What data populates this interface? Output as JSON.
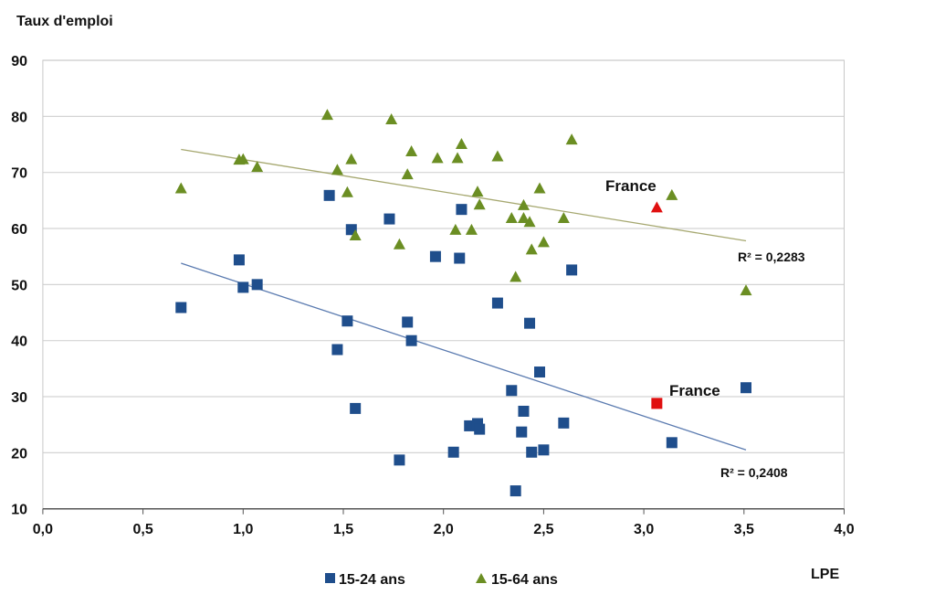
{
  "chart_data": {
    "type": "scatter",
    "title": "",
    "ylabel": "Taux d'emploi",
    "xlabel": "LPE",
    "xlim": [
      0,
      4
    ],
    "ylim": [
      10,
      90
    ],
    "xticks": [
      "0,0",
      "0,5",
      "1,0",
      "1,5",
      "2,0",
      "2,5",
      "3,0",
      "3,5",
      "4,0"
    ],
    "yticks": [
      "10",
      "20",
      "30",
      "40",
      "50",
      "60",
      "70",
      "80",
      "90"
    ],
    "grid": "horizontal",
    "legend_position": "bottom",
    "colors": {
      "series1": "#1f4e8c",
      "series2": "#6b8e23",
      "highlight": "#e01010",
      "trend1": "#5b7bb0",
      "trend2": "#a6a870",
      "grid": "#d4d4d4"
    },
    "series": [
      {
        "name": "15-24 ans",
        "marker": "square",
        "points": [
          [
            0.69,
            45.9
          ],
          [
            0.98,
            54.4
          ],
          [
            1.0,
            49.5
          ],
          [
            1.07,
            50.0
          ],
          [
            1.43,
            65.9
          ],
          [
            1.47,
            38.4
          ],
          [
            1.52,
            43.5
          ],
          [
            1.54,
            59.8
          ],
          [
            1.56,
            27.9
          ],
          [
            1.73,
            61.7
          ],
          [
            1.78,
            18.7
          ],
          [
            1.82,
            43.3
          ],
          [
            1.84,
            40.0
          ],
          [
            1.96,
            55.0
          ],
          [
            2.05,
            20.1
          ],
          [
            2.09,
            63.4
          ],
          [
            2.08,
            54.7
          ],
          [
            2.64,
            52.6
          ],
          [
            2.27,
            46.7
          ],
          [
            2.43,
            43.1
          ],
          [
            2.48,
            34.4
          ],
          [
            2.34,
            31.1
          ],
          [
            2.4,
            27.4
          ],
          [
            2.13,
            24.8
          ],
          [
            2.17,
            25.2
          ],
          [
            2.18,
            24.2
          ],
          [
            2.39,
            23.7
          ],
          [
            2.6,
            25.3
          ],
          [
            2.44,
            20.1
          ],
          [
            2.5,
            20.5
          ],
          [
            2.36,
            13.2
          ],
          [
            3.14,
            21.8
          ],
          [
            3.51,
            31.6
          ]
        ],
        "highlight": {
          "label": "France",
          "point": [
            3.065,
            28.8
          ]
        },
        "trend": {
          "from": [
            0.69,
            53.8
          ],
          "to": [
            3.51,
            20.5
          ],
          "r2_label": "R² = 0,2408"
        }
      },
      {
        "name": "15-64 ans",
        "marker": "triangle",
        "points": [
          [
            0.69,
            67.1
          ],
          [
            0.98,
            72.2
          ],
          [
            1.0,
            72.3
          ],
          [
            1.07,
            70.9
          ],
          [
            1.42,
            80.2
          ],
          [
            1.47,
            70.4
          ],
          [
            1.52,
            66.4
          ],
          [
            1.54,
            72.3
          ],
          [
            1.56,
            58.7
          ],
          [
            1.74,
            79.4
          ],
          [
            1.78,
            57.1
          ],
          [
            1.82,
            69.6
          ],
          [
            1.84,
            73.7
          ],
          [
            1.97,
            72.5
          ],
          [
            2.06,
            59.7
          ],
          [
            2.07,
            72.5
          ],
          [
            2.09,
            75.0
          ],
          [
            2.14,
            59.7
          ],
          [
            2.17,
            66.5
          ],
          [
            2.18,
            64.2
          ],
          [
            2.27,
            72.8
          ],
          [
            2.34,
            61.8
          ],
          [
            2.36,
            51.3
          ],
          [
            2.4,
            61.8
          ],
          [
            2.4,
            64.1
          ],
          [
            2.43,
            61.1
          ],
          [
            2.44,
            56.2
          ],
          [
            2.48,
            67.1
          ],
          [
            2.5,
            57.5
          ],
          [
            2.6,
            61.8
          ],
          [
            2.64,
            75.8
          ],
          [
            3.14,
            65.9
          ],
          [
            3.51,
            48.9
          ]
        ],
        "highlight": {
          "label": "France",
          "point": [
            3.065,
            63.7
          ]
        },
        "trend": {
          "from": [
            0.69,
            74.1
          ],
          "to": [
            3.51,
            57.8
          ],
          "r2_label": "R² = 0,2283"
        }
      }
    ]
  }
}
